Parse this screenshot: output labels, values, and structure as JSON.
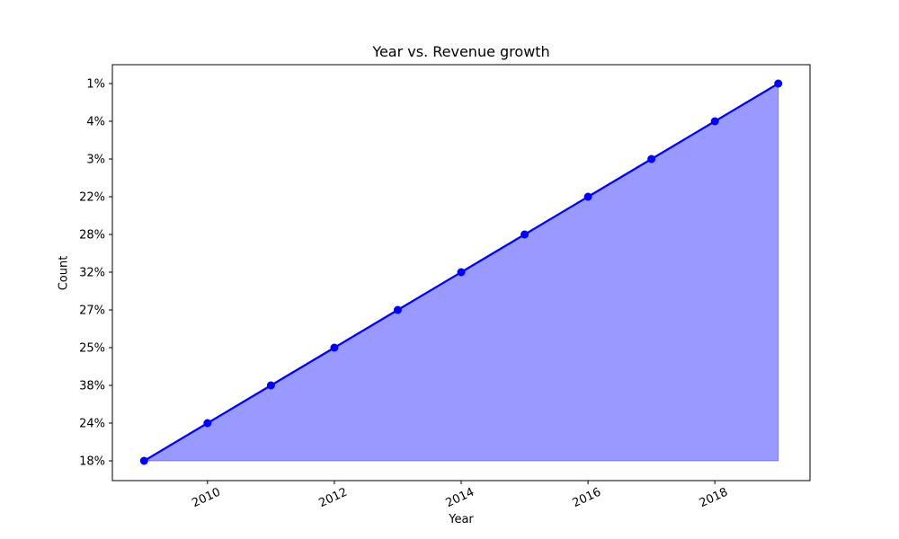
{
  "chart_data": {
    "type": "area",
    "title": "Year vs. Revenue growth",
    "xlabel": "Year",
    "ylabel": "Count",
    "x": [
      2009,
      2010,
      2011,
      2012,
      2013,
      2014,
      2015,
      2016,
      2017,
      2018,
      2019
    ],
    "y_categories": [
      "18%",
      "24%",
      "38%",
      "25%",
      "27%",
      "32%",
      "28%",
      "22%",
      "3%",
      "4%",
      "1%"
    ],
    "series": [
      {
        "values": [
          "18%",
          "24%",
          "38%",
          "25%",
          "27%",
          "32%",
          "28%",
          "22%",
          "3%",
          "4%",
          "1%"
        ]
      }
    ],
    "x_ticks": [
      2010,
      2012,
      2014,
      2016,
      2018
    ],
    "xlim": [
      2008.5,
      2019.5
    ],
    "grid": false,
    "colors": {
      "line": "#0000ff",
      "fill": "#9999ff"
    }
  }
}
